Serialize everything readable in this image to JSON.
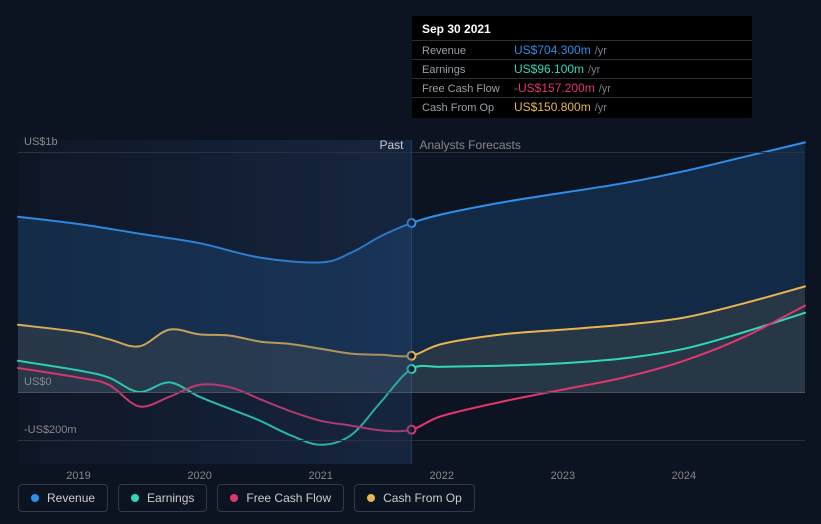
{
  "tooltip": {
    "date": "Sep 30 2021",
    "rows": [
      {
        "label": "Revenue",
        "value": "US$704.300m",
        "unit": "/yr",
        "color": "#2f8eea"
      },
      {
        "label": "Earnings",
        "value": "US$96.100m",
        "unit": "/yr",
        "color": "#2fd8b8"
      },
      {
        "label": "Free Cash Flow",
        "value": "-US$157.200m",
        "unit": "/yr",
        "color": "#e2366e"
      },
      {
        "label": "Cash From Op",
        "value": "US$150.800m",
        "unit": "/yr",
        "color": "#e7b553"
      }
    ]
  },
  "chart": {
    "type": "area-line",
    "background": "#0d1421",
    "grid_color": "#2a3240",
    "zero_line_color": "#4a5260",
    "font_size_axis": 11,
    "x_range": [
      2018.5,
      2025.0
    ],
    "y_range": [
      -300,
      1050
    ],
    "y_ticks": [
      {
        "v": 1000,
        "label": "US$1b"
      },
      {
        "v": 0,
        "label": "US$0"
      },
      {
        "v": -200,
        "label": "-US$200m"
      }
    ],
    "x_ticks": [
      {
        "v": 2019,
        "label": "2019"
      },
      {
        "v": 2020,
        "label": "2020"
      },
      {
        "v": 2021,
        "label": "2021"
      },
      {
        "v": 2022,
        "label": "2022"
      },
      {
        "v": 2023,
        "label": "2023"
      },
      {
        "v": 2024,
        "label": "2024"
      }
    ],
    "divider_x": 2021.75,
    "past_label": "Past",
    "forecast_label": "Analysts Forecasts",
    "series": [
      {
        "name": "Revenue",
        "color": "#2f8eea",
        "fill_opacity": 0.18,
        "line_width": 2,
        "points": [
          [
            2018.5,
            730
          ],
          [
            2019.0,
            700
          ],
          [
            2019.5,
            660
          ],
          [
            2020.0,
            620
          ],
          [
            2020.5,
            560
          ],
          [
            2021.0,
            540
          ],
          [
            2021.25,
            580
          ],
          [
            2021.5,
            650
          ],
          [
            2021.75,
            704
          ],
          [
            2022.0,
            740
          ],
          [
            2022.5,
            790
          ],
          [
            2023.0,
            830
          ],
          [
            2023.5,
            870
          ],
          [
            2024.0,
            920
          ],
          [
            2024.5,
            980
          ],
          [
            2025.0,
            1040
          ]
        ]
      },
      {
        "name": "Cash From Op",
        "color": "#e7b553",
        "fill_opacity": 0.1,
        "line_width": 2,
        "points": [
          [
            2018.5,
            280
          ],
          [
            2019.0,
            250
          ],
          [
            2019.25,
            220
          ],
          [
            2019.5,
            190
          ],
          [
            2019.75,
            260
          ],
          [
            2020.0,
            240
          ],
          [
            2020.25,
            235
          ],
          [
            2020.5,
            210
          ],
          [
            2020.75,
            200
          ],
          [
            2021.0,
            180
          ],
          [
            2021.25,
            160
          ],
          [
            2021.5,
            155
          ],
          [
            2021.75,
            151
          ],
          [
            2022.0,
            200
          ],
          [
            2022.5,
            240
          ],
          [
            2023.0,
            260
          ],
          [
            2023.5,
            280
          ],
          [
            2024.0,
            310
          ],
          [
            2024.5,
            370
          ],
          [
            2025.0,
            440
          ]
        ]
      },
      {
        "name": "Earnings",
        "color": "#2fd8b8",
        "fill_opacity": 0.0,
        "line_width": 2,
        "points": [
          [
            2018.5,
            130
          ],
          [
            2019.0,
            90
          ],
          [
            2019.25,
            60
          ],
          [
            2019.5,
            0
          ],
          [
            2019.75,
            40
          ],
          [
            2020.0,
            -20
          ],
          [
            2020.25,
            -70
          ],
          [
            2020.5,
            -120
          ],
          [
            2020.75,
            -180
          ],
          [
            2021.0,
            -220
          ],
          [
            2021.25,
            -180
          ],
          [
            2021.5,
            -40
          ],
          [
            2021.75,
            96
          ],
          [
            2022.0,
            105
          ],
          [
            2022.5,
            110
          ],
          [
            2023.0,
            120
          ],
          [
            2023.5,
            140
          ],
          [
            2024.0,
            180
          ],
          [
            2024.5,
            250
          ],
          [
            2025.0,
            330
          ]
        ]
      },
      {
        "name": "Free Cash Flow",
        "color": "#e2366e",
        "fill_opacity": 0.0,
        "line_width": 2,
        "points": [
          [
            2018.5,
            100
          ],
          [
            2019.0,
            60
          ],
          [
            2019.25,
            30
          ],
          [
            2019.5,
            -60
          ],
          [
            2019.75,
            -20
          ],
          [
            2020.0,
            30
          ],
          [
            2020.25,
            20
          ],
          [
            2020.5,
            -30
          ],
          [
            2020.75,
            -80
          ],
          [
            2021.0,
            -120
          ],
          [
            2021.25,
            -140
          ],
          [
            2021.5,
            -160
          ],
          [
            2021.75,
            -157
          ],
          [
            2022.0,
            -100
          ],
          [
            2022.5,
            -40
          ],
          [
            2023.0,
            10
          ],
          [
            2023.5,
            60
          ],
          [
            2024.0,
            130
          ],
          [
            2024.5,
            230
          ],
          [
            2025.0,
            360
          ]
        ]
      }
    ],
    "markers_x": 2021.75
  },
  "legend": [
    {
      "name": "Revenue",
      "color": "#2f8eea"
    },
    {
      "name": "Earnings",
      "color": "#2fd8b8"
    },
    {
      "name": "Free Cash Flow",
      "color": "#e2366e"
    },
    {
      "name": "Cash From Op",
      "color": "#e7b553"
    }
  ]
}
